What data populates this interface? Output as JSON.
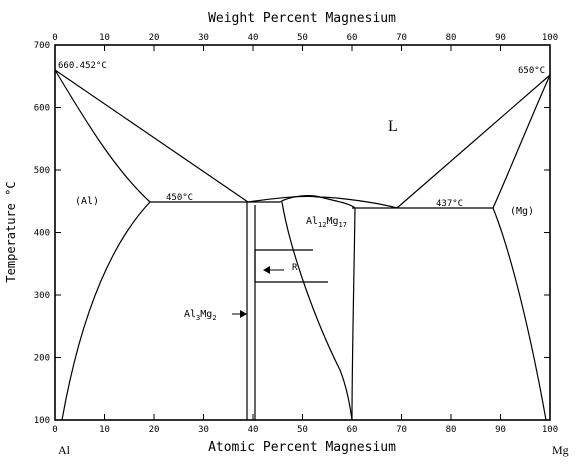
{
  "titles": {
    "top_axis": "Weight Percent Magnesium",
    "bottom_axis": "Atomic Percent Magnesium",
    "left_axis": "Temperature °C"
  },
  "axis_ticks": {
    "bottom": [
      "0",
      "10",
      "20",
      "30",
      "40",
      "50",
      "60",
      "70",
      "80",
      "90",
      "100"
    ],
    "top": [
      "0",
      "10",
      "20",
      "30",
      "40",
      "50",
      "60",
      "70",
      "80",
      "90",
      "100"
    ],
    "left": [
      "100",
      "200",
      "300",
      "400",
      "500",
      "600",
      "700"
    ]
  },
  "ends": {
    "left_element": "Al",
    "right_element": "Mg"
  },
  "annotations": {
    "al_melt": "660.452°C",
    "mg_melt": "650°C",
    "eutectic_left": "450°C",
    "eutectic_right": "437°C"
  },
  "phases": {
    "liquid": "L",
    "al_solid": "(Al)",
    "mg_solid": "(Mg)",
    "al12mg17": {
      "base": "Al",
      "sub1": "12",
      "mid": "Mg",
      "sub2": "17"
    },
    "al3mg2": {
      "base": "Al",
      "sub1": "3",
      "mid": "Mg",
      "sub2": "2"
    },
    "r_phase": "R"
  }
}
